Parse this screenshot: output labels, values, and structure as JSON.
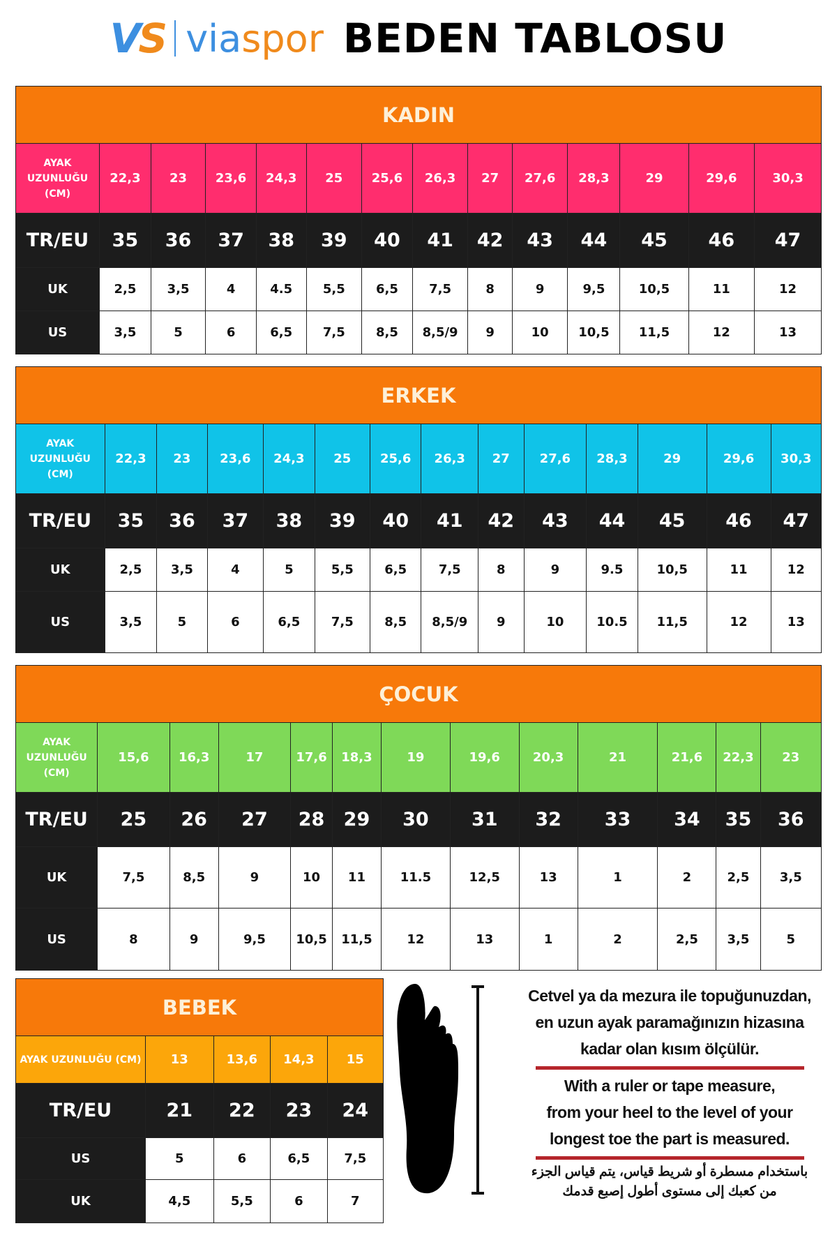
{
  "header": {
    "logo_vs": "VS",
    "logo_word": "viaspor",
    "title": "BEDEN TABLOSU"
  },
  "colors": {
    "orange": "#f7790a",
    "kadin_len": "#ff2d6e",
    "erkek_len": "#10c3e8",
    "cocuk_len": "#7fd958",
    "bebek_len": "#fca60a",
    "dark": "#1c1c1c",
    "divider": "#b5262b"
  },
  "tables": [
    {
      "title": "KADIN",
      "len_label": "AYAK UZUNLUĞU (CM)",
      "len": [
        "22,3",
        "23",
        "23,6",
        "24,3",
        "25",
        "25,6",
        "26,3",
        "27",
        "27,6",
        "28,3",
        "29",
        "29,6",
        "30,3"
      ],
      "eu_label": "TR/EU",
      "eu": [
        "35",
        "36",
        "37",
        "38",
        "39",
        "40",
        "41",
        "42",
        "43",
        "44",
        "45",
        "46",
        "47"
      ],
      "rows": [
        {
          "label": "UK",
          "values": [
            "2,5",
            "3,5",
            "4",
            "4.5",
            "5,5",
            "6,5",
            "7,5",
            "8",
            "9",
            "9,5",
            "10,5",
            "11",
            "12"
          ]
        },
        {
          "label": "US",
          "values": [
            "3,5",
            "5",
            "6",
            "6,5",
            "7,5",
            "8,5",
            "8,5/9",
            "9",
            "10",
            "10,5",
            "11,5",
            "12",
            "13"
          ]
        }
      ]
    },
    {
      "title": "ERKEK",
      "len_label": "AYAK UZUNLUĞU (CM)",
      "len": [
        "22,3",
        "23",
        "23,6",
        "24,3",
        "25",
        "25,6",
        "26,3",
        "27",
        "27,6",
        "28,3",
        "29",
        "29,6",
        "30,3"
      ],
      "eu_label": "TR/EU",
      "eu": [
        "35",
        "36",
        "37",
        "38",
        "39",
        "40",
        "41",
        "42",
        "43",
        "44",
        "45",
        "46",
        "47"
      ],
      "rows": [
        {
          "label": "UK",
          "values": [
            "2,5",
            "3,5",
            "4",
            "5",
            "5,5",
            "6,5",
            "7,5",
            "8",
            "9",
            "9.5",
            "10,5",
            "11",
            "12"
          ]
        },
        {
          "label": "US",
          "values": [
            "3,5",
            "5",
            "6",
            "6,5",
            "7,5",
            "8,5",
            "8,5/9",
            "9",
            "10",
            "10.5",
            "11,5",
            "12",
            "13"
          ]
        }
      ]
    },
    {
      "title": "ÇOCUK",
      "len_label": "AYAK UZUNLUĞU (CM)",
      "len": [
        "15,6",
        "16,3",
        "17",
        "17,6",
        "18,3",
        "19",
        "19,6",
        "20,3",
        "21",
        "21,6",
        "22,3",
        "23"
      ],
      "eu_label": "TR/EU",
      "eu": [
        "25",
        "26",
        "27",
        "28",
        "29",
        "30",
        "31",
        "32",
        "33",
        "34",
        "35",
        "36"
      ],
      "rows": [
        {
          "label": "UK",
          "values": [
            "7,5",
            "8,5",
            "9",
            "10",
            "11",
            "11.5",
            "12,5",
            "13",
            "1",
            "2",
            "2,5",
            "3,5"
          ]
        },
        {
          "label": "US",
          "values": [
            "8",
            "9",
            "9,5",
            "10,5",
            "11,5",
            "12",
            "13",
            "1",
            "2",
            "2,5",
            "3,5",
            "5"
          ]
        }
      ]
    },
    {
      "title": "BEBEK",
      "len_label": "AYAK UZUNLUĞU (CM)",
      "len": [
        "13",
        "13,6",
        "14,3",
        "15"
      ],
      "eu_label": "TR/EU",
      "eu": [
        "21",
        "22",
        "23",
        "24"
      ],
      "rows": [
        {
          "label": "US",
          "values": [
            "5",
            "6",
            "6,5",
            "7,5"
          ]
        },
        {
          "label": "UK",
          "values": [
            "4,5",
            "5,5",
            "6",
            "7"
          ]
        }
      ]
    }
  ],
  "instructions": {
    "tr": [
      "Cetvel ya da mezura ile topuğunuzdan,",
      "en uzun ayak paramağınızın hizasına",
      "kadar olan kısım ölçülür."
    ],
    "en": [
      "With a ruler or tape measure,",
      "from your heel to the level of your",
      "longest toe the part is measured."
    ],
    "ar": [
      "باستخدام مسطرة أو شريط قياس، يتم قياس الجزء",
      "من كعبك إلى مستوى أطول إصبع قدمك"
    ]
  }
}
